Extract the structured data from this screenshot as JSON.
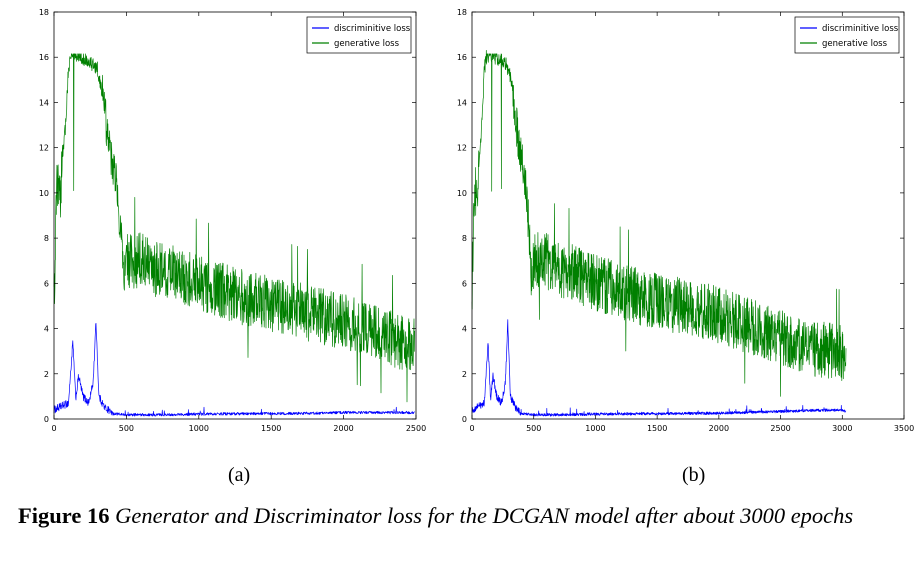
{
  "chart_data": [
    {
      "type": "line",
      "panel_label": "(a)",
      "xlim": [
        0,
        2500
      ],
      "ylim": [
        0,
        18
      ],
      "xticks": [
        0,
        500,
        1000,
        1500,
        2000,
        2500
      ],
      "yticks": [
        0,
        2,
        4,
        6,
        8,
        10,
        12,
        14,
        16,
        18
      ],
      "grid": false,
      "legend_position": "top-right",
      "series": [
        {
          "name": "discriminitive loss",
          "color": "#0000ff",
          "x": [
            0,
            100,
            130,
            150,
            170,
            200,
            240,
            270,
            290,
            310,
            350,
            400,
            500,
            700,
            1000,
            1300,
            1500,
            1800,
            2000,
            2200,
            2490
          ],
          "values": [
            0.3,
            0.6,
            3.3,
            0.8,
            1.8,
            0.9,
            0.6,
            1.5,
            4.2,
            0.9,
            0.4,
            0.2,
            0.15,
            0.15,
            0.18,
            0.2,
            0.2,
            0.22,
            0.25,
            0.25,
            0.25
          ]
        },
        {
          "name": "generative loss",
          "color": "#008000",
          "x": [
            0,
            20,
            40,
            60,
            80,
            100,
            120,
            150,
            200,
            250,
            300,
            330,
            360,
            400,
            430,
            460,
            480,
            500,
            600,
            700,
            800,
            1000,
            1200,
            1400,
            1600,
            1800,
            2000,
            2200,
            2400,
            2490
          ],
          "values": [
            5.0,
            10.5,
            9.5,
            11.5,
            13.0,
            15.5,
            16.1,
            16.1,
            16.0,
            15.8,
            15.5,
            14.5,
            13.0,
            11.5,
            10.5,
            8.5,
            6.5,
            7.0,
            7.0,
            6.6,
            6.5,
            6.0,
            5.6,
            5.2,
            5.0,
            4.6,
            4.3,
            3.9,
            3.4,
            3.3
          ]
        }
      ]
    },
    {
      "type": "line",
      "panel_label": "(b)",
      "xlim": [
        0,
        3500
      ],
      "ylim": [
        0,
        18
      ],
      "xticks": [
        0,
        500,
        1000,
        1500,
        2000,
        2500,
        3000,
        3500
      ],
      "yticks": [
        0,
        2,
        4,
        6,
        8,
        10,
        12,
        14,
        16,
        18
      ],
      "grid": false,
      "legend_position": "top-right",
      "series": [
        {
          "name": "discriminitive loss",
          "color": "#0000ff",
          "x": [
            0,
            100,
            130,
            150,
            170,
            200,
            240,
            270,
            290,
            310,
            350,
            400,
            500,
            700,
            1000,
            1500,
            2000,
            2500,
            2800,
            3000,
            3030
          ],
          "values": [
            0.3,
            0.6,
            3.3,
            0.8,
            1.8,
            0.9,
            0.6,
            1.5,
            4.2,
            0.9,
            0.4,
            0.2,
            0.15,
            0.15,
            0.18,
            0.2,
            0.22,
            0.3,
            0.35,
            0.35,
            0.3
          ]
        },
        {
          "name": "generative loss",
          "color": "#008000",
          "x": [
            0,
            20,
            40,
            60,
            80,
            100,
            120,
            150,
            200,
            250,
            300,
            330,
            360,
            400,
            430,
            460,
            480,
            500,
            600,
            700,
            800,
            1000,
            1200,
            1400,
            1600,
            1800,
            2000,
            2200,
            2400,
            2600,
            2800,
            3000,
            3030
          ],
          "values": [
            5.0,
            10.5,
            9.5,
            11.5,
            13.0,
            15.5,
            16.1,
            16.1,
            16.0,
            15.8,
            15.5,
            14.5,
            13.0,
            11.5,
            10.5,
            8.5,
            6.5,
            7.0,
            7.0,
            6.6,
            6.5,
            6.0,
            5.7,
            5.3,
            5.1,
            4.9,
            4.6,
            4.2,
            3.8,
            3.4,
            3.1,
            2.9,
            3.1
          ]
        }
      ]
    }
  ],
  "caption": {
    "label": "Figure 16",
    "text": "Generator and Discriminator loss for the DCGAN model after about 3000 epochs"
  }
}
